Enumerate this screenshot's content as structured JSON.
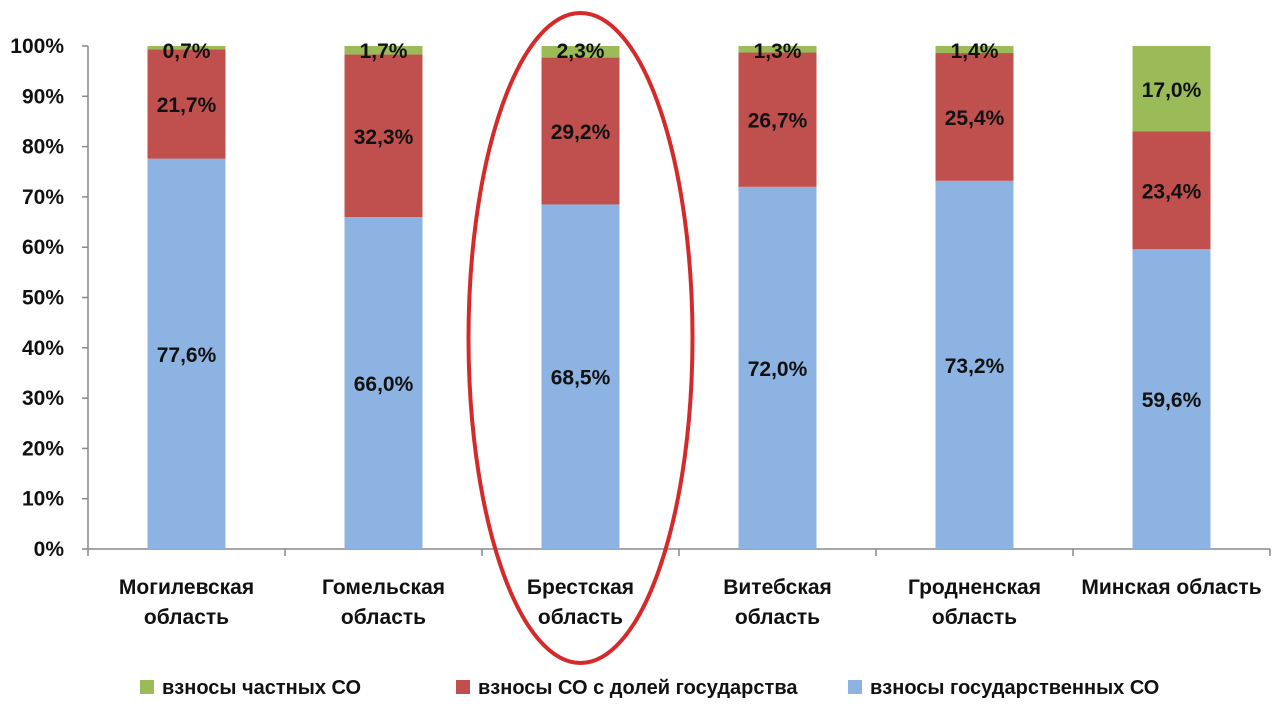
{
  "chart_data": {
    "type": "bar",
    "stacked": true,
    "percent_stacked": true,
    "categories": [
      [
        "Могилевская",
        "область"
      ],
      [
        "Гомельская",
        "область"
      ],
      [
        "Брестская",
        "область"
      ],
      [
        "Витебская",
        "область"
      ],
      [
        "Гродненская",
        "область"
      ],
      [
        "Минская область"
      ]
    ],
    "series": [
      {
        "name": "взносы государственных СО",
        "color": "#8db3e2",
        "values": [
          77.6,
          66.0,
          68.5,
          72.0,
          73.2,
          59.6
        ],
        "labels": [
          "77,6%",
          "66,0%",
          "68,5%",
          "72,0%",
          "73,2%",
          "59,6%"
        ]
      },
      {
        "name": "взносы СО с долей государства",
        "color": "#c0504d",
        "values": [
          21.7,
          32.3,
          29.2,
          26.7,
          25.4,
          23.4
        ],
        "labels": [
          "21,7%",
          "32,3%",
          "29,2%",
          "26,7%",
          "25,4%",
          "23,4%"
        ]
      },
      {
        "name": "взносы частных СО",
        "color": "#9bbb59",
        "values": [
          0.7,
          1.7,
          2.3,
          1.3,
          1.4,
          17.0
        ],
        "labels": [
          "0,7%",
          "1,7%",
          "2,3%",
          "1,3%",
          "1,4%",
          "17,0%"
        ]
      }
    ],
    "y_ticks": [
      "0%",
      "10%",
      "20%",
      "30%",
      "40%",
      "50%",
      "60%",
      "70%",
      "80%",
      "90%",
      "100%"
    ],
    "ylim": [
      0,
      100
    ],
    "grid": false,
    "legend_position": "bottom",
    "legend_order": [
      "взносы частных СО",
      "взносы СО с долей государства",
      "взносы государственных СО"
    ],
    "highlight": {
      "category_index": 2,
      "shape": "ellipse",
      "color": "#d42a2a"
    }
  }
}
